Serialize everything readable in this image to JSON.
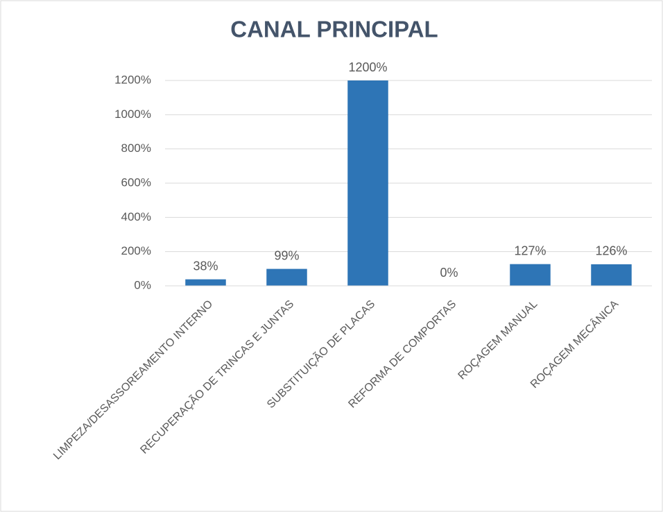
{
  "chart_data": {
    "type": "bar",
    "title": "CANAL PRINCIPAL",
    "categories": [
      "LIMPEZA/DESASSOREAMENTO INTERNO",
      "RECUPERAÇÃO DE TRINCAS E JUNTAS",
      "SUBSTITUIÇÃO DE PLACAS",
      "REFORMA DE COMPORTAS",
      "ROÇAGEM MANUAL",
      "ROÇAGEM MECÂNICA"
    ],
    "values": [
      38,
      99,
      1200,
      0,
      127,
      126
    ],
    "value_labels": [
      "38%",
      "99%",
      "1200%",
      "0%",
      "127%",
      "126%"
    ],
    "color": "#2e75b6",
    "ylim": [
      0,
      1200
    ],
    "yticks": [
      {
        "value": 0,
        "label": "0%"
      },
      {
        "value": 200,
        "label": "200%"
      },
      {
        "value": 400,
        "label": "400%"
      },
      {
        "value": 600,
        "label": "600%"
      },
      {
        "value": 800,
        "label": "800%"
      },
      {
        "value": 1000,
        "label": "1000%"
      },
      {
        "value": 1200,
        "label": "1200%"
      }
    ],
    "grid": true
  }
}
